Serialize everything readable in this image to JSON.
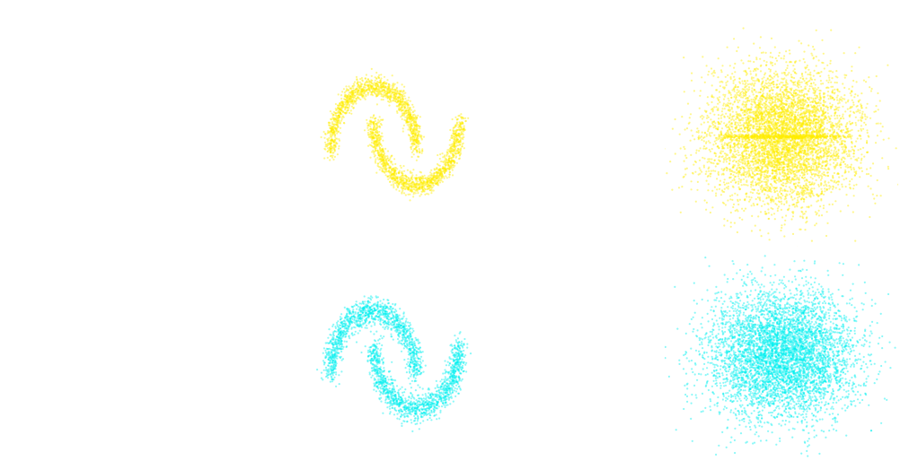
{
  "colors": {
    "yellow": "#ffee00",
    "cyan": "#00f0f0"
  },
  "chart_data": [
    {
      "type": "scatter",
      "title": "",
      "distribution": "two-moons",
      "color": "#ffee00",
      "n_points": 2600,
      "noise": 0.08,
      "xlim": [
        -1.6,
        2.6
      ],
      "ylim": [
        -1.1,
        1.5
      ],
      "grid": false
    },
    {
      "type": "scatter",
      "title": "",
      "distribution": "gaussian-with-horizontal-band",
      "color": "#ffee00",
      "n_points": 5200,
      "mean": [
        0,
        0
      ],
      "std": [
        1,
        1
      ],
      "band_y": 0.0,
      "xlim": [
        -3.2,
        3.2
      ],
      "ylim": [
        -3.2,
        3.2
      ],
      "grid": false
    },
    {
      "type": "scatter",
      "title": "",
      "distribution": "two-moons",
      "color": "#00f0f0",
      "n_points": 2600,
      "noise": 0.1,
      "xlim": [
        -1.6,
        2.6
      ],
      "ylim": [
        -1.1,
        1.5
      ],
      "grid": false
    },
    {
      "type": "scatter",
      "title": "",
      "distribution": "gaussian",
      "color": "#00f0f0",
      "n_points": 5200,
      "mean": [
        0,
        0
      ],
      "std": [
        1,
        1
      ],
      "xlim": [
        -3.2,
        3.2
      ],
      "ylim": [
        -3.2,
        3.2
      ],
      "grid": false
    }
  ]
}
